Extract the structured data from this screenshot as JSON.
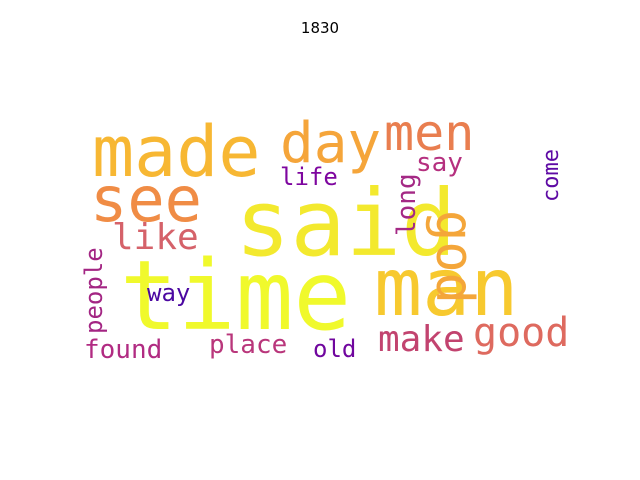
{
  "title": "1830",
  "words": {
    "said": {
      "text": "said",
      "color": "#f3e92e",
      "orientation": "horizontal"
    },
    "time": {
      "text": "time",
      "color": "#f0f92c",
      "orientation": "horizontal"
    },
    "man": {
      "text": "man",
      "color": "#f7c92f",
      "orientation": "horizontal"
    },
    "made": {
      "text": "made",
      "color": "#f7b733",
      "orientation": "horizontal"
    },
    "see": {
      "text": "see",
      "color": "#f08c45",
      "orientation": "horizontal"
    },
    "day": {
      "text": "day",
      "color": "#f5a53a",
      "orientation": "horizontal"
    },
    "men": {
      "text": "men",
      "color": "#e97e4f",
      "orientation": "horizontal"
    },
    "god": {
      "text": "god",
      "color": "#f4a63a",
      "orientation": "vertical"
    },
    "like": {
      "text": "like",
      "color": "#d5626a",
      "orientation": "horizontal"
    },
    "good": {
      "text": "good",
      "color": "#de6a5f",
      "orientation": "horizontal"
    },
    "make": {
      "text": "make",
      "color": "#c2436f",
      "orientation": "horizontal"
    },
    "say": {
      "text": "say",
      "color": "#b5307f",
      "orientation": "horizontal"
    },
    "life": {
      "text": "life",
      "color": "#7e069f",
      "orientation": "horizontal"
    },
    "come": {
      "text": "come",
      "color": "#5e0aa4",
      "orientation": "vertical"
    },
    "long": {
      "text": "long",
      "color": "#a42985",
      "orientation": "vertical"
    },
    "people": {
      "text": "people",
      "color": "#a32583",
      "orientation": "vertical"
    },
    "way": {
      "text": "way",
      "color": "#4b07a1",
      "orientation": "horizontal"
    },
    "found": {
      "text": "found",
      "color": "#b12b82",
      "orientation": "horizontal"
    },
    "place": {
      "text": "place",
      "color": "#b9367b",
      "orientation": "horizontal"
    },
    "old": {
      "text": "old",
      "color": "#70069e",
      "orientation": "horizontal"
    }
  }
}
